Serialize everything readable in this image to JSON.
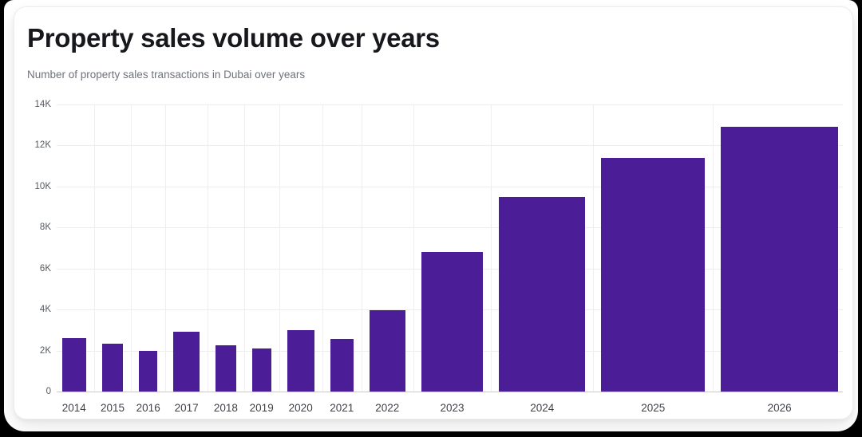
{
  "page": {
    "title": "Property sales volume over years",
    "subtitle": "Number of property sales transactions in Dubai over years"
  },
  "chart_data": {
    "type": "bar",
    "title": "Property sales volume over years",
    "subtitle": "Number of property sales transactions in Dubai over years",
    "categories": [
      "2014",
      "2015",
      "2016",
      "2017",
      "2018",
      "2019",
      "2020",
      "2021",
      "2022",
      "2023",
      "2024",
      "2025",
      "2026"
    ],
    "values": [
      2600,
      2350,
      2000,
      2900,
      2250,
      2100,
      3000,
      2550,
      3950,
      6800,
      9500,
      11400,
      12900
    ],
    "xlabel": "",
    "ylabel": "",
    "y_ticks": [
      "14K",
      "12K",
      "10K",
      "8K",
      "6K",
      "4K",
      "2K",
      "0"
    ],
    "y_tick_values": [
      14000,
      12000,
      10000,
      8000,
      6000,
      4000,
      2000,
      0
    ],
    "ylim": [
      0,
      14000
    ],
    "grid": true,
    "legend": false,
    "bar_width_proportional_to_value": true,
    "bar_color": "#4B1D96"
  },
  "colors": {
    "bar": "#4B1D96",
    "card_background": "#ffffff",
    "screen_edge": "#000000",
    "gridline": "#ededee",
    "axis_line": "#c7cbd1",
    "title_text": "#17181c",
    "subtitle_text": "#6d727c",
    "tick_text": "#55595f"
  }
}
